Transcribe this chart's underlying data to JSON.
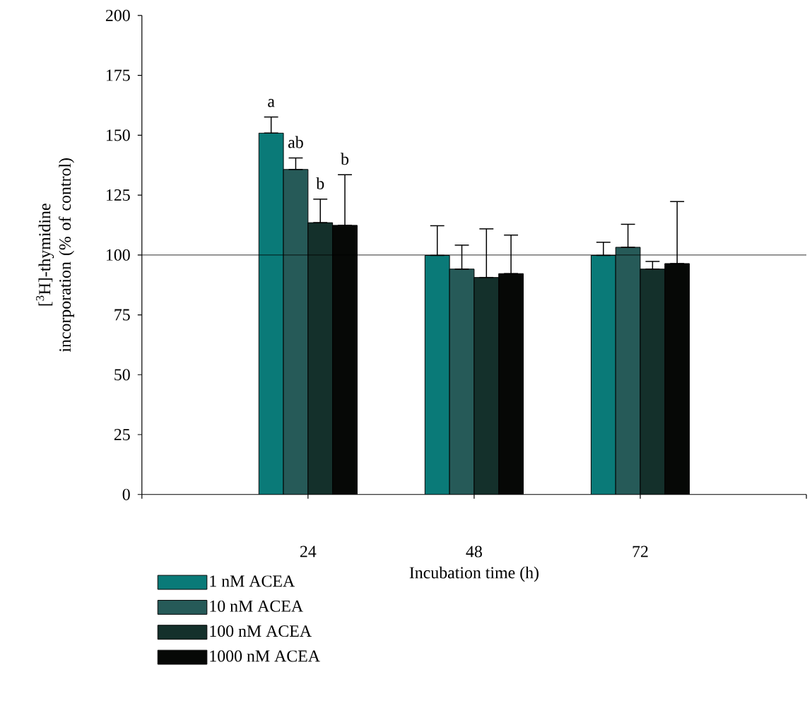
{
  "chart_data": {
    "type": "bar",
    "xlabel": "Incubation time (h)",
    "ylabel": "[$^{3}$H]-thymidine incorporation (% of control)",
    "categories": [
      "24",
      "48",
      "72"
    ],
    "series": [
      {
        "name": "1 nM ACEA",
        "color": "#0a7a78",
        "values": [
          150.9,
          99.8,
          99.8
        ],
        "errors": [
          [
            150.9,
            157.6
          ],
          [
            99.8,
            112.2
          ],
          [
            99.8,
            105.3
          ]
        ]
      },
      {
        "name": "10 nM ACEA",
        "color": "#265a58",
        "values": [
          135.7,
          94.1,
          103.2
        ],
        "errors": [
          [
            135.7,
            140.5
          ],
          [
            94.1,
            104.1
          ],
          [
            103.2,
            112.8
          ]
        ]
      },
      {
        "name": "100 nM ACEA",
        "color": "#14302b",
        "values": [
          113.5,
          90.6,
          94.1
        ],
        "errors": [
          [
            113.5,
            123.3
          ],
          [
            90.6,
            110.9
          ],
          [
            94.1,
            97.3
          ]
        ]
      },
      {
        "name": "1000 nM ACEA",
        "color": "#060806",
        "values": [
          112.4,
          92.2,
          96.4
        ],
        "errors": [
          [
            112.4,
            133.5
          ],
          [
            92.2,
            108.3
          ],
          [
            96.4,
            122.3
          ]
        ]
      }
    ],
    "ylim": [
      0,
      200
    ],
    "yticks": [
      0,
      25,
      50,
      75,
      100,
      125,
      150,
      175,
      200
    ],
    "ref_lines": [
      {
        "axis": "y",
        "value": 100,
        "color": "#000000"
      }
    ],
    "annotations": [
      "a",
      "ab",
      "b",
      "b"
    ],
    "legend": "bottom left"
  }
}
